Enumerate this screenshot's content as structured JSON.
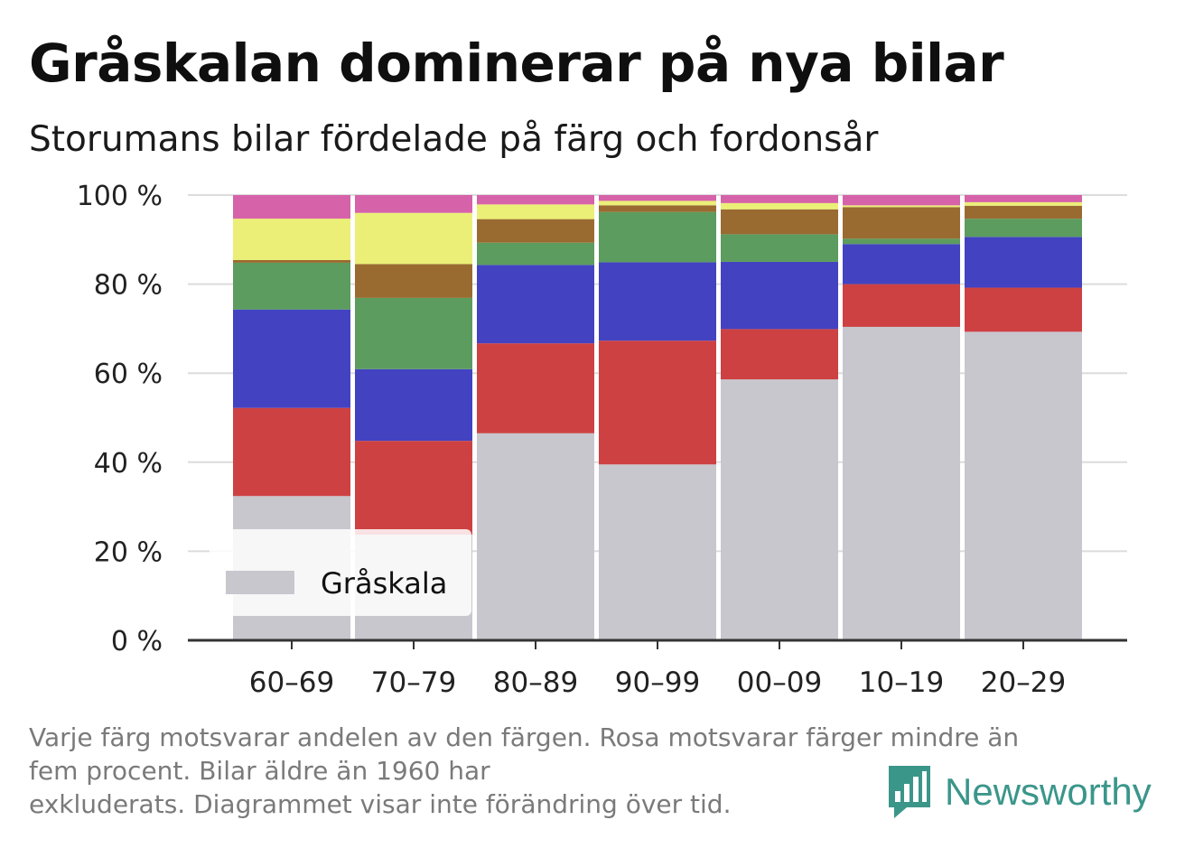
{
  "header": {
    "title": "Gråskalan dominerar på nya bilar",
    "subtitle": "Storumans bilar fördelade på färg och fordonsår"
  },
  "footer": {
    "note_lines": [
      "Varje färg motsvarar andelen av den färgen. Rosa motsvarar färger mindre än",
      "fem procent. Bilar äldre än 1960 har",
      "exkluderats. Diagrammet visar inte förändring över tid."
    ],
    "brand": "Newsworthy",
    "brand_icon": "bar-chart-icon",
    "brand_color": "#3b968a"
  },
  "chart_data": {
    "type": "bar",
    "stacked": true,
    "categories": [
      "60–69",
      "70–79",
      "80–89",
      "90–99",
      "00–09",
      "10–19",
      "20–29"
    ],
    "yticks": [
      "0 %",
      "20 %",
      "40 %",
      "60 %",
      "80 %",
      "100 %"
    ],
    "ylim": [
      0,
      100
    ],
    "grid": true,
    "legend": {
      "placement": "bottom-left",
      "entries": [
        "Gråskala"
      ]
    },
    "series": [
      {
        "name": "Gråskala",
        "color": "#c8c7ce",
        "values": [
          32.4,
          23.7,
          46.5,
          39.5,
          58.6,
          70.4,
          69.3
        ]
      },
      {
        "color": "#cd4142",
        "values": [
          19.8,
          21.1,
          20.2,
          27.8,
          11.3,
          9.6,
          9.9
        ]
      },
      {
        "color": "#4342c1",
        "values": [
          22.1,
          16.1,
          17.6,
          17.6,
          15.1,
          9.0,
          11.4
        ]
      },
      {
        "color": "#5c9c5f",
        "values": [
          10.5,
          16.0,
          5.0,
          11.3,
          6.2,
          1.2,
          4.1
        ]
      },
      {
        "color": "#996b31",
        "values": [
          0.6,
          7.6,
          5.3,
          1.5,
          5.6,
          7.1,
          2.9
        ]
      },
      {
        "color": "#ebef77",
        "values": [
          9.3,
          11.5,
          3.3,
          1.0,
          1.4,
          0.4,
          0.8
        ]
      },
      {
        "color": "#d662a9",
        "values": [
          5.3,
          4.0,
          2.1,
          1.3,
          1.8,
          2.3,
          1.6
        ]
      }
    ]
  }
}
